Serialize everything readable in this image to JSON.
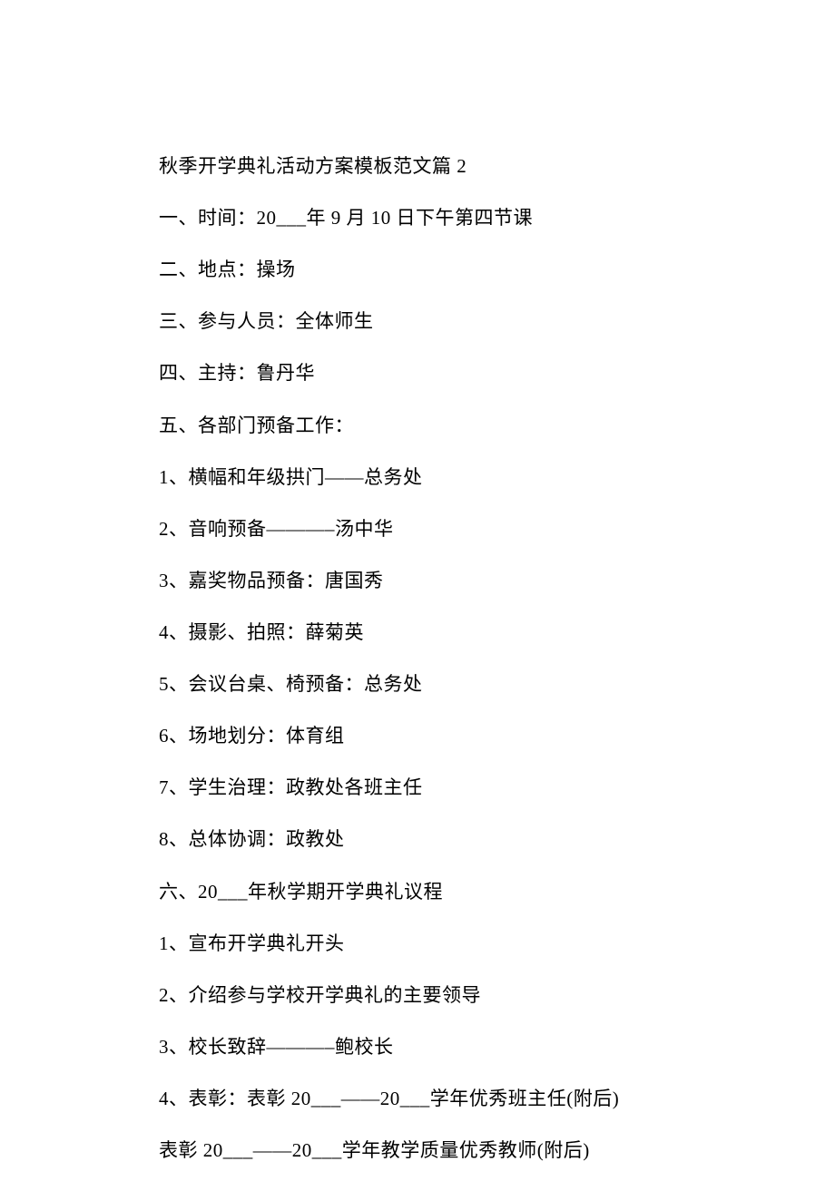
{
  "document": {
    "background_color": "#ffffff",
    "text_color": "#000000",
    "font_family": "SimSun",
    "font_size": 21,
    "line_height": 2.72,
    "lines": [
      "秋季开学典礼活动方案模板范文篇 2",
      "一、时间：20___年 9 月 10 日下午第四节课",
      "二、地点：操场",
      "三、参与人员：全体师生",
      "四、主持：鲁丹华",
      "五、各部门预备工作：",
      "1、横幅和年级拱门——总务处",
      "2、音响预备———–汤中华",
      "3、嘉奖物品预备：唐国秀",
      "4、摄影、拍照：薛菊英",
      "5、会议台桌、椅预备：总务处",
      "6、场地划分：体育组",
      "7、学生治理：政教处各班主任",
      "8、总体协调：政教处",
      "六、20___年秋学期开学典礼议程",
      "1、宣布开学典礼开头",
      "2、介绍参与学校开学典礼的主要领导",
      "3、校长致辞———–鲍校长",
      "4、表彰：表彰 20___——20___学年优秀班主任(附后)",
      "表彰 20___——20___学年教学质量优秀教师(附后)"
    ]
  }
}
